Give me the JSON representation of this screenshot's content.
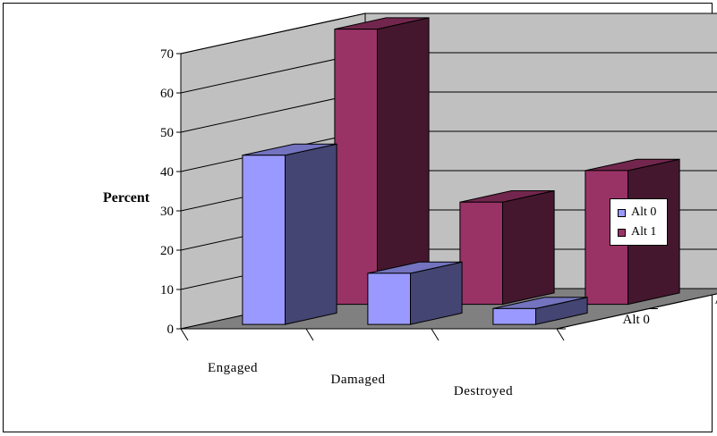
{
  "chart_data": {
    "type": "bar",
    "subtype": "3d-clustered-column",
    "title": "",
    "ylabel": "Percent",
    "xlabel": "",
    "categories": [
      "Engaged",
      "Damaged",
      "Destroyed"
    ],
    "depth_categories": [
      "Alt 0",
      "Alt 1"
    ],
    "y_ticks": [
      "0",
      "10",
      "20",
      "30",
      "40",
      "50",
      "60",
      "70"
    ],
    "ylim": [
      0,
      70
    ],
    "grid": true,
    "legend_position": "right",
    "series": [
      {
        "name": "Alt 0",
        "values": [
          43,
          13,
          4
        ],
        "color": "#9999ff"
      },
      {
        "name": "Alt 1",
        "values": [
          70,
          26,
          34
        ],
        "color": "#993366"
      }
    ],
    "colors": {
      "back_wall": "#c0c0c0",
      "floor": "#808080",
      "gridline": "#000000"
    }
  }
}
